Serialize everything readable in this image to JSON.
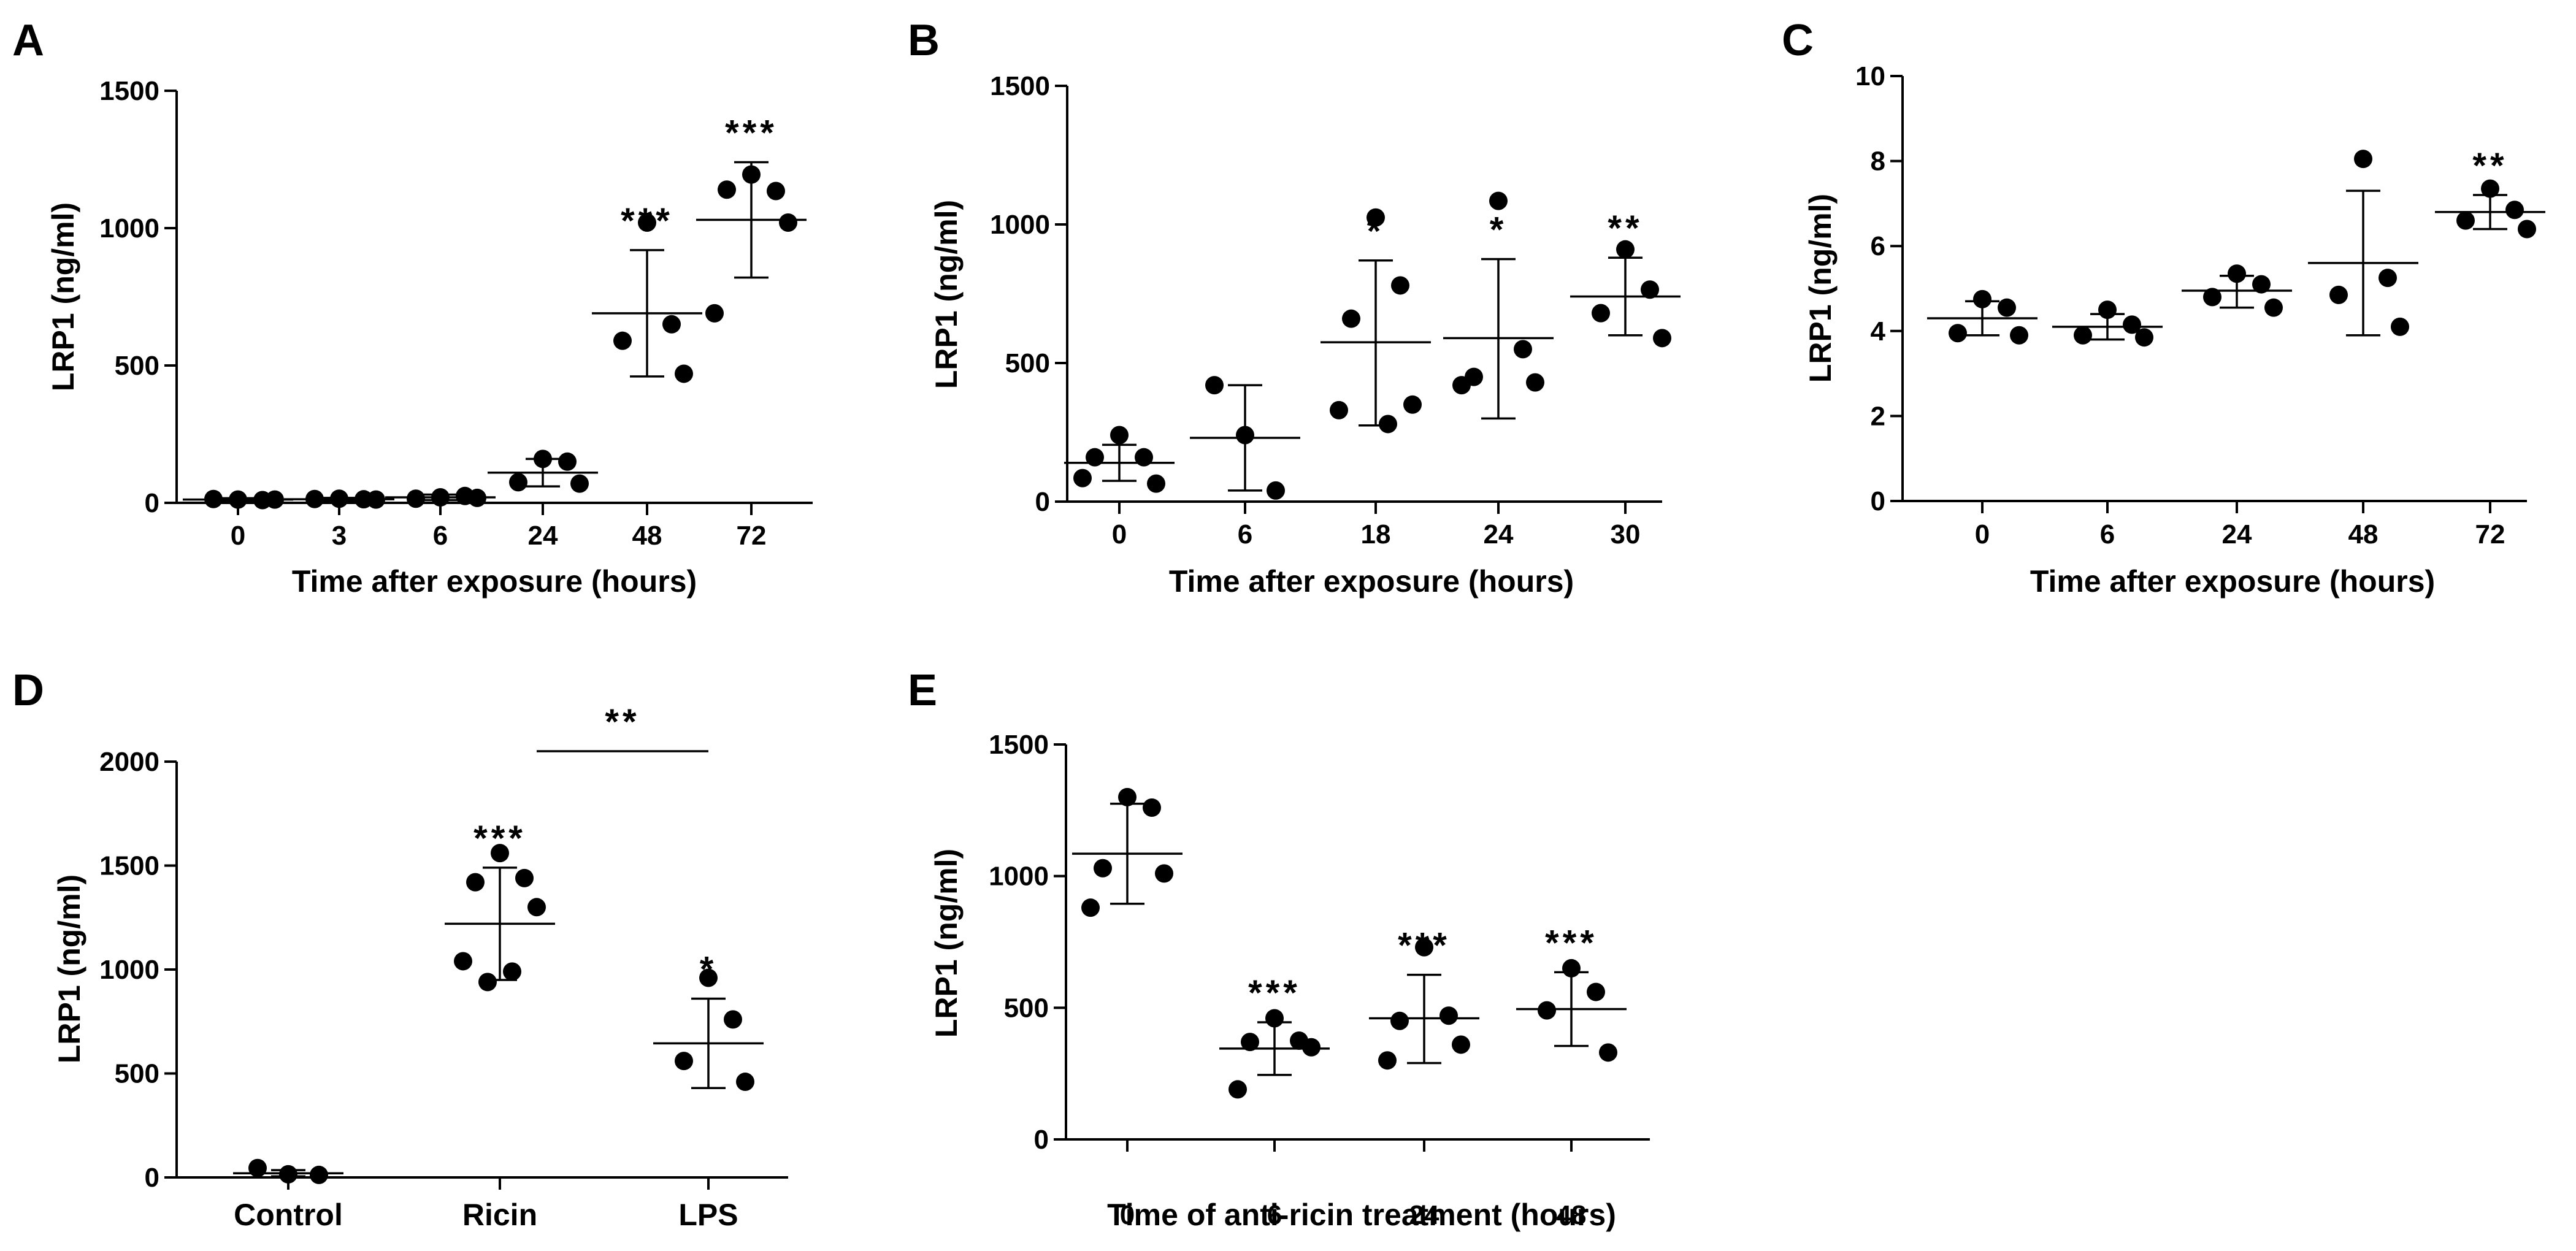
{
  "colors": {
    "background": "#ffffff",
    "ink": "#000000"
  },
  "chart_data": [
    {
      "panel": "A",
      "type": "scatter",
      "title": "",
      "xlabel": "Time after exposure (hours)",
      "ylabel": "LRP1 (ng/ml)",
      "ylim": [
        0,
        1500
      ],
      "yticks": [
        "0",
        "500",
        "1000",
        "1500"
      ],
      "categories": [
        "0",
        "3",
        "6",
        "24",
        "48",
        "72"
      ],
      "groups": [
        {
          "points": [
            12,
            10,
            14,
            12
          ],
          "mean": 12,
          "lower": 7,
          "upper": 17,
          "sig": ""
        },
        {
          "points": [
            15,
            13,
            14,
            12
          ],
          "mean": 13,
          "lower": 8,
          "upper": 18,
          "sig": ""
        },
        {
          "points": [
            20,
            25,
            15,
            18
          ],
          "mean": 20,
          "lower": 10,
          "upper": 30,
          "sig": ""
        },
        {
          "points": [
            160,
            150,
            75,
            70
          ],
          "mean": 110,
          "lower": 60,
          "upper": 160,
          "sig": ""
        },
        {
          "points": [
            1020,
            650,
            590,
            470
          ],
          "mean": 690,
          "lower": 460,
          "upper": 920,
          "sig": "***"
        },
        {
          "points": [
            1195,
            1135,
            1140,
            1020,
            690
          ],
          "mean": 1030,
          "lower": 820,
          "upper": 1240,
          "sig": "***"
        }
      ]
    },
    {
      "panel": "B",
      "type": "scatter",
      "title": "",
      "xlabel": "Time after exposure (hours)",
      "ylabel": "LRP1 (ng/ml)",
      "ylim": [
        0,
        1500
      ],
      "yticks": [
        "0",
        "500",
        "1000",
        "1500"
      ],
      "categories": [
        "0",
        "6",
        "18",
        "24",
        "30"
      ],
      "groups": [
        {
          "points": [
            240,
            160,
            160,
            65,
            85
          ],
          "mean": 140,
          "lower": 75,
          "upper": 205,
          "sig": ""
        },
        {
          "points": [
            420,
            240,
            40
          ],
          "mean": 230,
          "lower": 40,
          "upper": 420,
          "sig": ""
        },
        {
          "points": [
            1025,
            780,
            660,
            350,
            330,
            280
          ],
          "mean": 575,
          "lower": 275,
          "upper": 870,
          "sig": "*"
        },
        {
          "points": [
            1085,
            550,
            450,
            430,
            420
          ],
          "mean": 590,
          "lower": 300,
          "upper": 875,
          "sig": "*"
        },
        {
          "points": [
            910,
            765,
            680,
            590
          ],
          "mean": 740,
          "lower": 600,
          "upper": 880,
          "sig": "**"
        }
      ]
    },
    {
      "panel": "C",
      "type": "scatter",
      "title": "",
      "xlabel": "Time after exposure (hours)",
      "ylabel": "LRP1 (ng/ml)",
      "ylim": [
        0,
        10
      ],
      "yticks": [
        "0",
        "2",
        "4",
        "6",
        "8",
        "10"
      ],
      "categories": [
        "0",
        "6",
        "24",
        "48",
        "72"
      ],
      "groups": [
        {
          "points": [
            4.75,
            4.55,
            3.95,
            3.9
          ],
          "mean": 4.3,
          "lower": 3.9,
          "upper": 4.7,
          "sig": ""
        },
        {
          "points": [
            4.5,
            4.15,
            3.9,
            3.85
          ],
          "mean": 4.1,
          "lower": 3.8,
          "upper": 4.4,
          "sig": ""
        },
        {
          "points": [
            5.35,
            5.1,
            4.8,
            4.55
          ],
          "mean": 4.95,
          "lower": 4.55,
          "upper": 5.3,
          "sig": ""
        },
        {
          "points": [
            8.05,
            5.25,
            4.85,
            4.1
          ],
          "mean": 5.6,
          "lower": 3.9,
          "upper": 7.3,
          "sig": ""
        },
        {
          "points": [
            7.35,
            6.85,
            6.6,
            6.4
          ],
          "mean": 6.8,
          "lower": 6.4,
          "upper": 7.2,
          "sig": "**"
        }
      ]
    },
    {
      "panel": "D",
      "type": "scatter",
      "title": "",
      "xlabel": "",
      "ylabel": "LRP1 (ng/ml)",
      "ylim": [
        0,
        2000
      ],
      "yticks": [
        "0",
        "500",
        "1000",
        "1500",
        "2000"
      ],
      "categories": [
        "Control",
        "Ricin",
        "LPS"
      ],
      "groups": [
        {
          "points": [
            45,
            15,
            12
          ],
          "mean": 20,
          "lower": 5,
          "upper": 35,
          "sig": ""
        },
        {
          "points": [
            1560,
            1440,
            1420,
            1300,
            1040,
            990,
            940
          ],
          "mean": 1220,
          "lower": 950,
          "upper": 1490,
          "sig": "***"
        },
        {
          "points": [
            960,
            760,
            560,
            460
          ],
          "mean": 645,
          "lower": 430,
          "upper": 860,
          "sig": "*"
        }
      ],
      "bracket": {
        "from": "Ricin",
        "to": "LPS",
        "value": 2050,
        "label": "**"
      }
    },
    {
      "panel": "E",
      "type": "scatter",
      "title": "",
      "xlabel": "Time of anti-ricin treatment (hours)",
      "ylabel": "LRP1 (ng/ml)",
      "ylim": [
        0,
        1500
      ],
      "yticks": [
        "0",
        "500",
        "1000",
        "1500"
      ],
      "categories": [
        "0",
        "6",
        "24",
        "48"
      ],
      "groups": [
        {
          "points": [
            1300,
            1260,
            1030,
            1010,
            880
          ],
          "mean": 1085,
          "lower": 895,
          "upper": 1275,
          "sig": ""
        },
        {
          "points": [
            460,
            375,
            370,
            350,
            190
          ],
          "mean": 345,
          "lower": 245,
          "upper": 445,
          "sig": "***"
        },
        {
          "points": [
            730,
            470,
            450,
            360,
            300
          ],
          "mean": 460,
          "lower": 290,
          "upper": 625,
          "sig": "***"
        },
        {
          "points": [
            650,
            560,
            490,
            330
          ],
          "mean": 495,
          "lower": 355,
          "upper": 635,
          "sig": "***"
        }
      ]
    }
  ]
}
